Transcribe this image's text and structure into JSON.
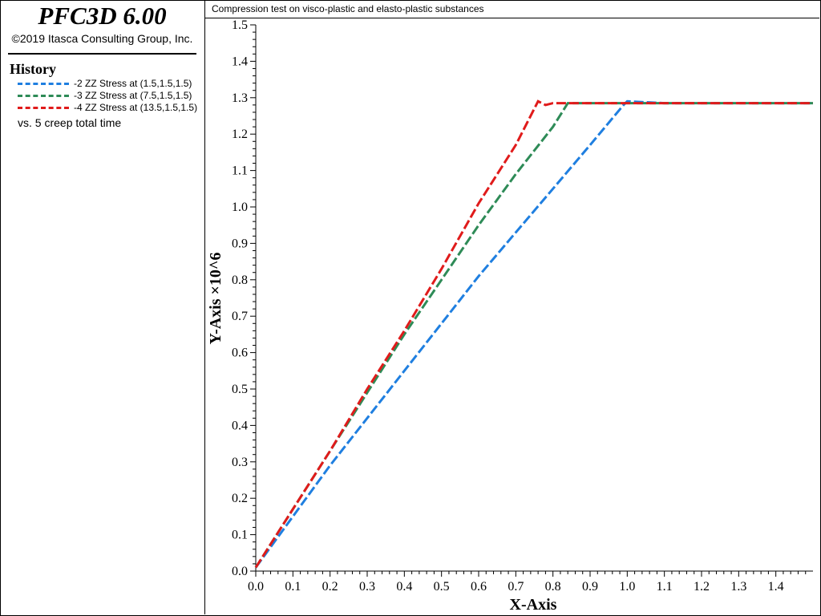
{
  "app": {
    "title": "PFC3D 6.00",
    "copyright": "©2019 Itasca Consulting Group, Inc."
  },
  "legend": {
    "heading": "History",
    "items": [
      {
        "label": "-2 ZZ Stress at (1.5,1.5,1.5)",
        "color": "#1f7fe0"
      },
      {
        "label": "-3 ZZ Stress at (7.5,1.5,1.5)",
        "color": "#2e8b57"
      },
      {
        "label": "-4 ZZ Stress at (13.5,1.5,1.5)",
        "color": "#e01b1b"
      }
    ],
    "vs": "vs. 5 creep total time"
  },
  "plot": {
    "title": "Compression test on visco-plastic and elasto-plastic substances"
  },
  "chart_data": {
    "type": "line",
    "title": "Compression test on visco-plastic and elasto-plastic substances",
    "xlabel": "X-Axis",
    "ylabel": "Y-Axis ×10^6",
    "xlim": [
      0,
      1.5
    ],
    "ylim": [
      0,
      1.5
    ],
    "xticks": [
      "0.0",
      "0.1",
      "0.2",
      "0.3",
      "0.4",
      "0.5",
      "0.6",
      "0.7",
      "0.8",
      "0.9",
      "1.0",
      "1.1",
      "1.2",
      "1.3",
      "1.4"
    ],
    "yticks": [
      "0.0",
      "0.1",
      "0.2",
      "0.3",
      "0.4",
      "0.5",
      "0.6",
      "0.7",
      "0.8",
      "0.9",
      "1.0",
      "1.1",
      "1.2",
      "1.3",
      "1.4",
      "1.5"
    ],
    "legend_position": "left-panel",
    "series": [
      {
        "name": "-2 ZZ Stress at (1.5,1.5,1.5)",
        "color": "#1f7fe0",
        "x": [
          0.0,
          0.1,
          0.2,
          0.3,
          0.4,
          0.5,
          0.6,
          0.7,
          0.8,
          0.9,
          0.99,
          1.0,
          1.1,
          1.2,
          1.3,
          1.4,
          1.5
        ],
        "y": [
          0.01,
          0.15,
          0.29,
          0.42,
          0.55,
          0.68,
          0.81,
          0.93,
          1.05,
          1.17,
          1.28,
          1.29,
          1.285,
          1.285,
          1.285,
          1.285,
          1.285
        ]
      },
      {
        "name": "-3 ZZ Stress at (7.5,1.5,1.5)",
        "color": "#2e8b57",
        "x": [
          0.0,
          0.1,
          0.2,
          0.3,
          0.4,
          0.5,
          0.6,
          0.7,
          0.8,
          0.84,
          0.9,
          1.0,
          1.1,
          1.2,
          1.3,
          1.4,
          1.5
        ],
        "y": [
          0.01,
          0.17,
          0.33,
          0.49,
          0.65,
          0.8,
          0.95,
          1.09,
          1.22,
          1.285,
          1.285,
          1.285,
          1.285,
          1.285,
          1.285,
          1.285,
          1.285
        ]
      },
      {
        "name": "-4 ZZ Stress at (13.5,1.5,1.5)",
        "color": "#e01b1b",
        "x": [
          0.0,
          0.1,
          0.2,
          0.3,
          0.4,
          0.5,
          0.6,
          0.7,
          0.76,
          0.78,
          0.8,
          0.9,
          1.0,
          1.1,
          1.2,
          1.3,
          1.4,
          1.5
        ],
        "y": [
          0.01,
          0.17,
          0.33,
          0.5,
          0.66,
          0.83,
          1.01,
          1.17,
          1.29,
          1.28,
          1.285,
          1.285,
          1.285,
          1.285,
          1.285,
          1.285,
          1.285,
          1.285
        ]
      }
    ]
  }
}
